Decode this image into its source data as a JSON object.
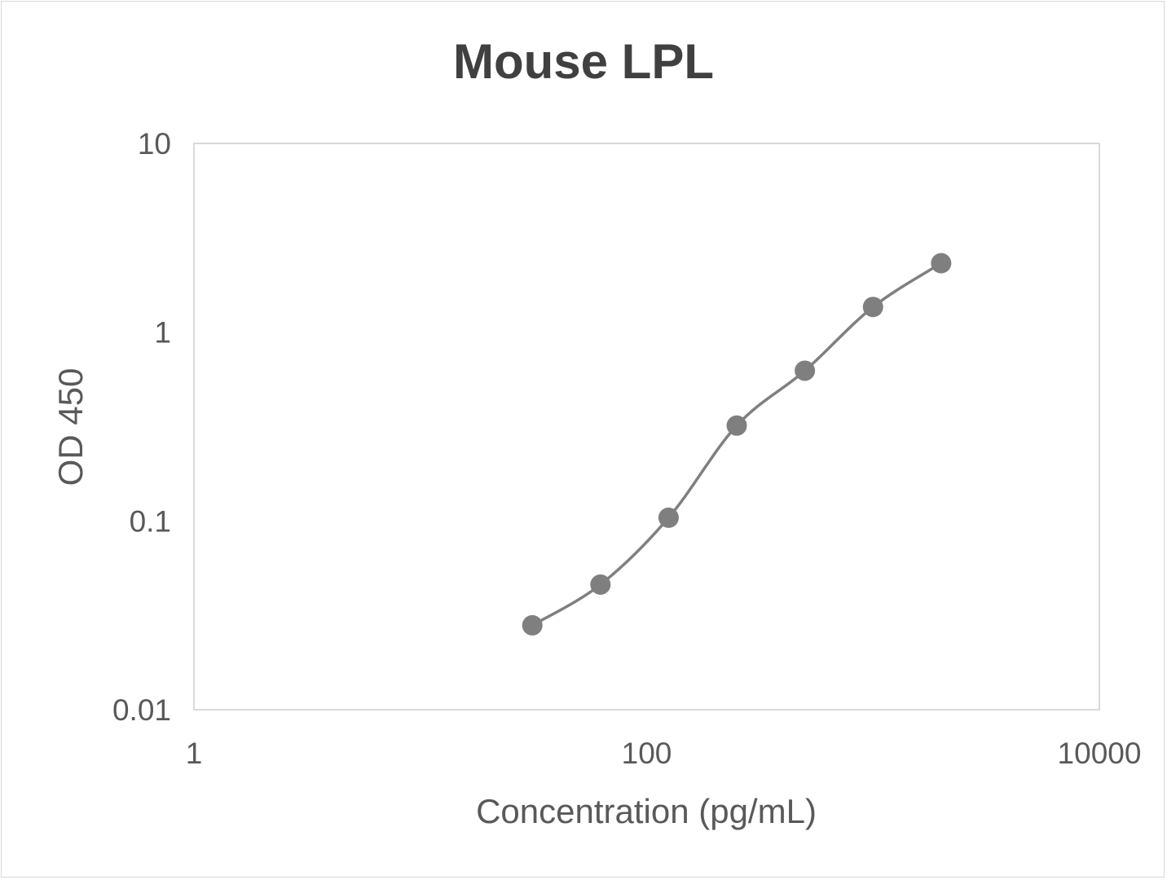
{
  "chart_data": {
    "type": "scatter",
    "title": "Mouse LPL",
    "xlabel": "Concentration (pg/mL)",
    "ylabel": "OD 450",
    "x_scale": "log",
    "y_scale": "log",
    "xlim": [
      1,
      10000
    ],
    "ylim": [
      0.01,
      10
    ],
    "x_ticks": [
      "1",
      "100",
      "10000"
    ],
    "y_ticks": [
      "10",
      "1",
      "0.1",
      "0.01"
    ],
    "grid": false,
    "legend": "none",
    "line": "smoothed",
    "color": "#7f7f7f",
    "series": [
      {
        "x": [
          31.25,
          62.5,
          125,
          250,
          500,
          1000,
          2000
        ],
        "y": [
          0.028,
          0.046,
          0.104,
          0.32,
          0.625,
          1.36,
          2.32
        ]
      }
    ]
  }
}
